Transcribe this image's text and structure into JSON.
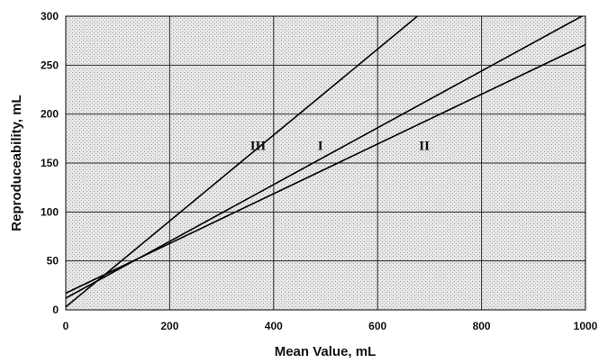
{
  "chart_data": {
    "type": "line",
    "xlabel": "Mean Value, mL",
    "ylabel": "Reproduceability, mL",
    "xlim": [
      0,
      1000
    ],
    "ylim": [
      0,
      300
    ],
    "x_ticks": [
      "0",
      "200",
      "400",
      "600",
      "800",
      "1000"
    ],
    "y_ticks": [
      "0",
      "50",
      "100",
      "150",
      "200",
      "250",
      "300"
    ],
    "grid": true,
    "legend": "none",
    "series": [
      {
        "name": "I",
        "x": [
          0,
          1000
        ],
        "y": [
          12,
          302
        ],
        "label_at": [
          490,
          168
        ]
      },
      {
        "name": "II",
        "x": [
          0,
          1000
        ],
        "y": [
          17,
          271
        ],
        "label_at": [
          690,
          168
        ]
      },
      {
        "name": "III",
        "x": [
          0,
          1000
        ],
        "y": [
          3,
          442
        ],
        "label_at": [
          370,
          168
        ]
      }
    ]
  }
}
